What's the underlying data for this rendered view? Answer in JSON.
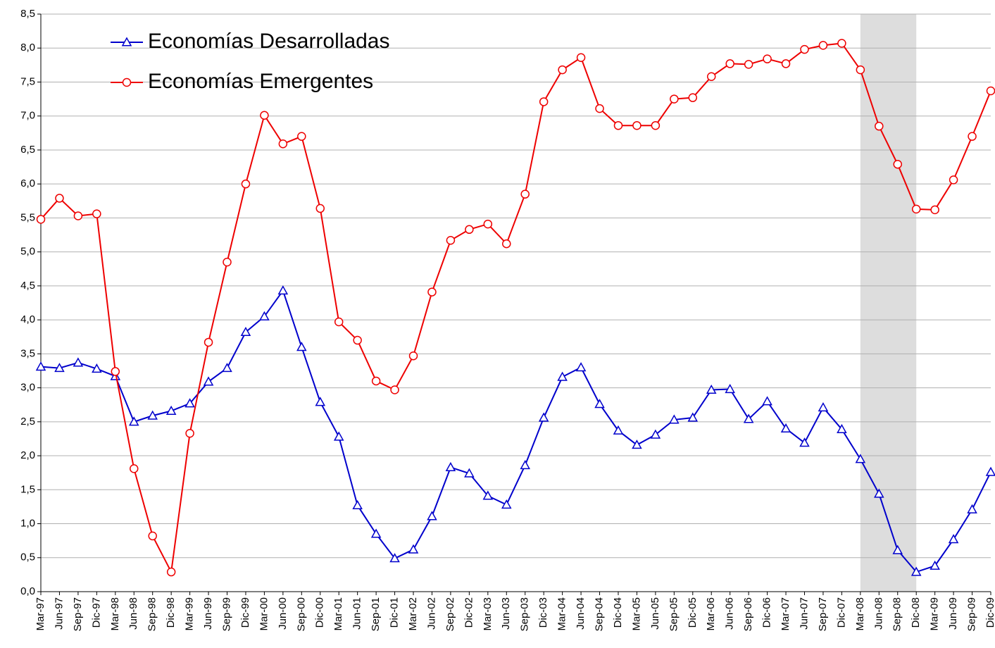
{
  "chart_data": {
    "type": "line",
    "categories": [
      "Mar-97",
      "Jun-97",
      "Sep-97",
      "Dic-97",
      "Mar-98",
      "Jun-98",
      "Sep-98",
      "Dic-98",
      "Mar-99",
      "Jun-99",
      "Sep-99",
      "Dic-99",
      "Mar-00",
      "Jun-00",
      "Sep-00",
      "Dic-00",
      "Mar-01",
      "Jun-01",
      "Sep-01",
      "Dic-01",
      "Mar-02",
      "Jun-02",
      "Sep-02",
      "Dic-02",
      "Mar-03",
      "Jun-03",
      "Sep-03",
      "Dic-03",
      "Mar-04",
      "Jun-04",
      "Sep-04",
      "Dic-04",
      "Mar-05",
      "Jun-05",
      "Sep-05",
      "Dic-05",
      "Mar-06",
      "Jun-06",
      "Sep-06",
      "Dic-06",
      "Mar-07",
      "Jun-07",
      "Sep-07",
      "Dic-07",
      "Mar-08",
      "Jun-08",
      "Sep-08",
      "Dic-08",
      "Mar-09",
      "Jun-09",
      "Sep-09",
      "Dic-09"
    ],
    "series": [
      {
        "name": "Economías Desarrolladas",
        "color": "#0000cc",
        "marker": "triangle",
        "values": [
          3.31,
          3.29,
          3.37,
          3.28,
          3.17,
          2.5,
          2.59,
          2.66,
          2.77,
          3.09,
          3.29,
          3.82,
          4.05,
          4.43,
          3.6,
          2.79,
          2.28,
          1.27,
          0.85,
          0.49,
          0.62,
          1.11,
          1.83,
          1.74,
          1.41,
          1.28,
          1.86,
          2.56,
          3.16,
          3.3,
          2.76,
          2.37,
          2.16,
          2.31,
          2.53,
          2.56,
          2.97,
          2.98,
          2.54,
          2.8,
          2.4,
          2.19,
          2.71,
          2.39,
          1.95,
          1.44,
          0.61,
          0.29,
          0.38,
          0.77,
          1.21,
          1.76
        ]
      },
      {
        "name": "Economías Emergentes",
        "color": "#ee0000",
        "marker": "circle",
        "values": [
          5.48,
          5.79,
          5.53,
          5.56,
          3.24,
          1.81,
          0.82,
          0.29,
          2.33,
          3.67,
          4.85,
          6.0,
          7.01,
          6.59,
          6.7,
          5.64,
          3.97,
          3.7,
          3.1,
          2.97,
          3.47,
          4.41,
          5.17,
          5.33,
          5.41,
          5.12,
          5.85,
          7.21,
          7.68,
          7.86,
          7.11,
          6.86,
          6.86,
          6.86,
          7.25,
          7.27,
          7.58,
          7.77,
          7.76,
          7.84,
          7.77,
          7.98,
          8.04,
          8.07,
          7.68,
          6.85,
          6.29,
          5.63,
          5.62,
          6.06,
          6.7,
          7.37
        ]
      }
    ],
    "ylim": [
      0,
      8.5
    ],
    "yticks": [
      {
        "value": 0,
        "label": "0,0"
      },
      {
        "value": 0.5,
        "label": "0,5"
      },
      {
        "value": 1,
        "label": "1,0"
      },
      {
        "value": 1.5,
        "label": "1,5"
      },
      {
        "value": 2,
        "label": "2,0"
      },
      {
        "value": 2.5,
        "label": "2,5"
      },
      {
        "value": 3,
        "label": "3,0"
      },
      {
        "value": 3.5,
        "label": "3,5"
      },
      {
        "value": 4,
        "label": "4,0"
      },
      {
        "value": 4.5,
        "label": "4,5"
      },
      {
        "value": 5,
        "label": "5,0"
      },
      {
        "value": 5.5,
        "label": "5,5"
      },
      {
        "value": 6,
        "label": "6,0"
      },
      {
        "value": 6.5,
        "label": "6,5"
      },
      {
        "value": 7,
        "label": "7,0"
      },
      {
        "value": 7.5,
        "label": "7,5"
      },
      {
        "value": 8,
        "label": "8,0"
      },
      {
        "value": 8.5,
        "label": "8,5"
      }
    ],
    "grid": true,
    "legend": "top-left",
    "highlight": {
      "start": "Mar-08",
      "end": "Dic-08",
      "color": "#dddddd"
    }
  }
}
